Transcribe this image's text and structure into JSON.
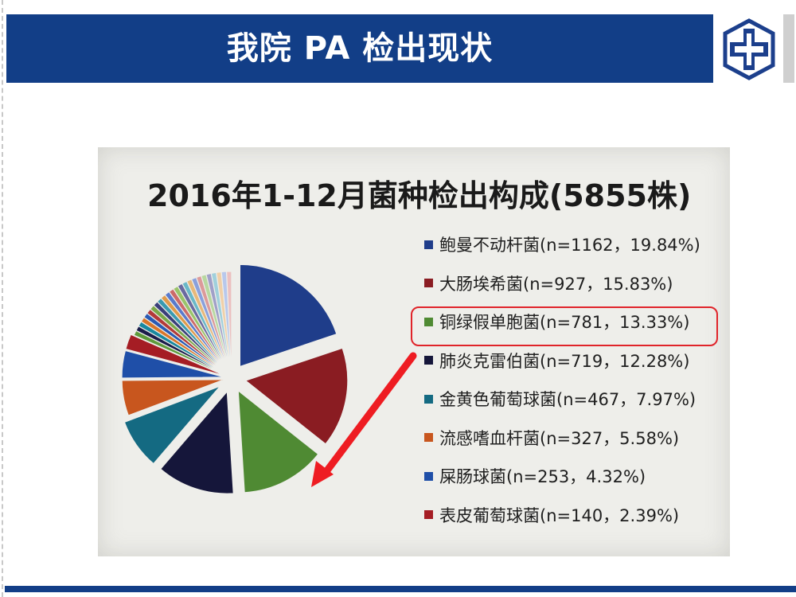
{
  "slide": {
    "title": "我院 PA 检出现状",
    "header_color": "#123e87",
    "logo_icon": "cross-emblem-icon"
  },
  "chart_data": {
    "type": "pie",
    "title": "2016年1-12月菌种检出构成(5855株)",
    "total": 5855,
    "legend_placement": "right",
    "slices": [
      {
        "name": "鲍曼不动杆菌",
        "n": 1162,
        "percent": 19.84,
        "label": "鲍曼不动杆菌(n=1162，19.84%)",
        "color": "#1f3d8a"
      },
      {
        "name": "大肠埃希菌",
        "n": 927,
        "percent": 15.83,
        "label": "大肠埃希菌(n=927，15.83%)",
        "color": "#8a1c22"
      },
      {
        "name": "铜绿假单胞菌",
        "n": 781,
        "percent": 13.33,
        "label": "铜绿假单胞菌(n=781，13.33%)",
        "color": "#4f8a33",
        "highlighted": true
      },
      {
        "name": "肺炎克雷伯菌",
        "n": 719,
        "percent": 12.28,
        "label": "肺炎克雷伯菌(n=719，12.28%)",
        "color": "#15163a"
      },
      {
        "name": "金黄色葡萄球菌",
        "n": 467,
        "percent": 7.97,
        "label": "金黄色葡萄球菌(n=467，7.97%)",
        "color": "#146a82"
      },
      {
        "name": "流感嗜血杆菌",
        "n": 327,
        "percent": 5.58,
        "label": "流感嗜血杆菌(n=327，5.58%)",
        "color": "#c8561e"
      },
      {
        "name": "屎肠球菌",
        "n": 253,
        "percent": 4.32,
        "label": "屎肠球菌(n=253，4.32%)",
        "color": "#1f4fa8"
      },
      {
        "name": "表皮葡萄球菌",
        "n": 140,
        "percent": 2.39,
        "label": "表皮葡萄球菌(n=140，2.39%)",
        "color": "#a51d24"
      }
    ],
    "other_slice_colors": [
      "#5e9b3b",
      "#1b1d4a",
      "#1888a0",
      "#d8762a",
      "#2a5ab4",
      "#b33a3a",
      "#7aa84a",
      "#3a3f7a",
      "#3a9ab0",
      "#e09a4a",
      "#5a7acc",
      "#cc6a6a",
      "#9ac46a",
      "#6a6aa0",
      "#6ab8c8",
      "#e8b87a",
      "#8aa0dc",
      "#dc9a9a",
      "#b8d8a0",
      "#a0a0c8",
      "#a0d0dc",
      "#f0d0a8",
      "#b8c8ec",
      "#ecc0c0"
    ],
    "highlight_color": "#e0242a"
  }
}
